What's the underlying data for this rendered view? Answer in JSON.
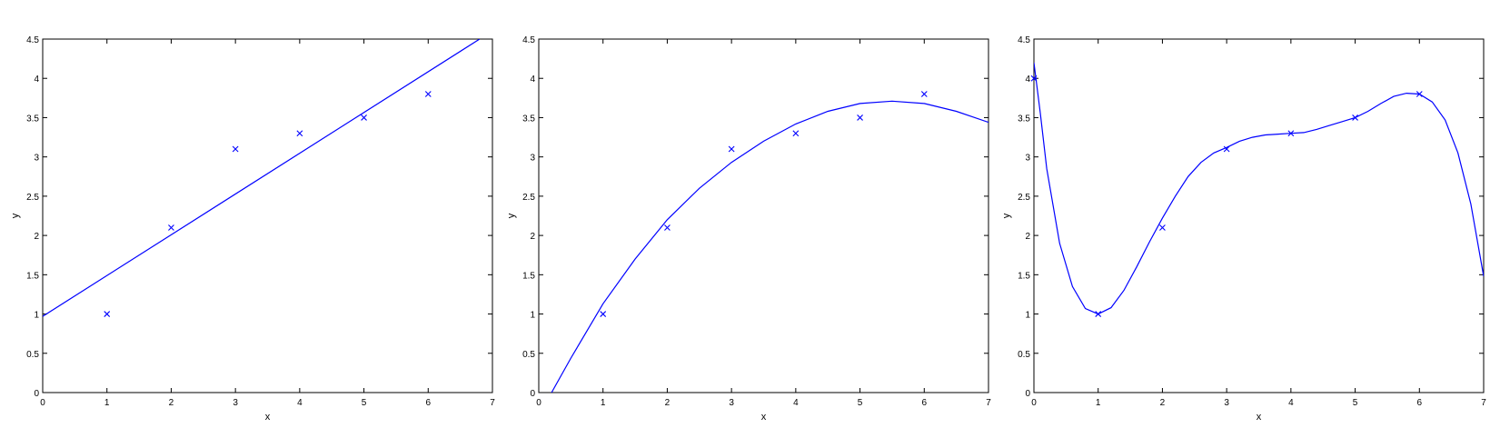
{
  "colors": {
    "series": "#0000ff",
    "axes": "#000000",
    "background": "#ffffff"
  },
  "chart_data": [
    {
      "type": "scatter",
      "title": "",
      "xlabel": "x",
      "ylabel": "y",
      "xlim": [
        0,
        7
      ],
      "ylim": [
        0,
        4.5
      ],
      "xticks": [
        "0",
        "1",
        "2",
        "3",
        "4",
        "5",
        "6",
        "7"
      ],
      "yticks": [
        "0",
        "0.5",
        "1",
        "1.5",
        "2",
        "2.5",
        "3",
        "3.5",
        "4",
        "4.5"
      ],
      "grid": false,
      "points": {
        "x": [
          1,
          2,
          3,
          4,
          5,
          6
        ],
        "y": [
          1.0,
          2.1,
          3.1,
          3.3,
          3.5,
          3.8
        ]
      },
      "fit_line": {
        "x": [
          0,
          6.8
        ],
        "y": [
          0.97,
          4.5
        ]
      }
    },
    {
      "type": "scatter",
      "title": "",
      "xlabel": "x",
      "ylabel": "y",
      "xlim": [
        0,
        7
      ],
      "ylim": [
        0,
        4.5
      ],
      "xticks": [
        "0",
        "1",
        "2",
        "3",
        "4",
        "5",
        "6",
        "7"
      ],
      "yticks": [
        "0",
        "0.5",
        "1",
        "1.5",
        "2",
        "2.5",
        "3",
        "3.5",
        "4",
        "4.5"
      ],
      "grid": false,
      "points": {
        "x": [
          1,
          2,
          3,
          4,
          5,
          6
        ],
        "y": [
          1.0,
          2.1,
          3.1,
          3.3,
          3.5,
          3.8
        ]
      },
      "fit_line": {
        "x": [
          0.2,
          0.5,
          1.0,
          1.5,
          2.0,
          2.5,
          3.0,
          3.5,
          4.0,
          4.5,
          5.0,
          5.5,
          6.0,
          6.5,
          7.0
        ],
        "y": [
          0.0,
          0.44,
          1.13,
          1.7,
          2.2,
          2.6,
          2.93,
          3.2,
          3.42,
          3.58,
          3.68,
          3.71,
          3.68,
          3.58,
          3.44
        ]
      }
    },
    {
      "type": "scatter",
      "title": "",
      "xlabel": "x",
      "ylabel": "y",
      "xlim": [
        0,
        7
      ],
      "ylim": [
        0,
        4.5
      ],
      "xticks": [
        "0",
        "1",
        "2",
        "3",
        "4",
        "5",
        "6",
        "7"
      ],
      "yticks": [
        "0",
        "0.5",
        "1",
        "1.5",
        "2",
        "2.5",
        "3",
        "3.5",
        "4",
        "4.5"
      ],
      "grid": false,
      "points": {
        "x": [
          0,
          1,
          2,
          3,
          4,
          5,
          6
        ],
        "y": [
          4.0,
          1.0,
          2.1,
          3.1,
          3.3,
          3.5,
          3.8
        ]
      },
      "fit_line": {
        "x": [
          0,
          0.1,
          0.2,
          0.4,
          0.6,
          0.8,
          1.0,
          1.2,
          1.4,
          1.6,
          1.8,
          2.0,
          2.2,
          2.4,
          2.6,
          2.8,
          3.0,
          3.2,
          3.4,
          3.6,
          3.8,
          4.0,
          4.2,
          4.4,
          4.6,
          4.8,
          5.0,
          5.2,
          5.4,
          5.6,
          5.8,
          6.0,
          6.2,
          6.4,
          6.6,
          6.8,
          7.0
        ],
        "y": [
          4.2,
          3.55,
          2.85,
          1.9,
          1.35,
          1.07,
          1.0,
          1.08,
          1.3,
          1.6,
          1.92,
          2.22,
          2.5,
          2.75,
          2.93,
          3.05,
          3.12,
          3.2,
          3.25,
          3.28,
          3.29,
          3.3,
          3.31,
          3.35,
          3.4,
          3.45,
          3.5,
          3.58,
          3.68,
          3.77,
          3.81,
          3.8,
          3.7,
          3.47,
          3.05,
          2.4,
          1.48
        ]
      }
    }
  ]
}
